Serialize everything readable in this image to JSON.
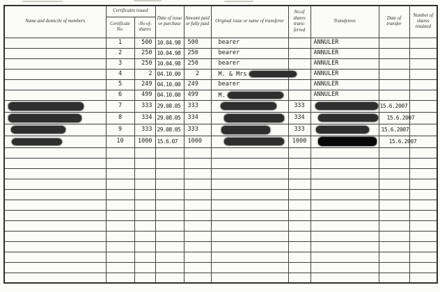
{
  "document": {
    "kind": "scanned share register page"
  },
  "colors": {
    "paper": "#fbfbf8",
    "ink": "#1b1b1b",
    "line": "#3e3e3e",
    "redaction": "#2e2e2e",
    "redaction_black": "#070707"
  },
  "header": {
    "name": "Name and domicile of members",
    "certificates_issued": "Certificates issued",
    "certificate_no": "Certificate No.",
    "no_of_shares": "-No of- shares",
    "date_of_issue": "Date of issue or purchase",
    "amount_paid": "Amount paid or fully paid",
    "original_issue": "Original issue or name of transferor",
    "shares_transferred": "No.of shares trans- ferred",
    "transferees": "Transferees",
    "date_of_transfer": "Date of transfer",
    "shares_retained": "Number of shares retained"
  },
  "table": {
    "empty_row_count": 13,
    "rows": [
      {
        "cert": "1",
        "shares": "500",
        "issue_date": "10.04.98",
        "amount": "500",
        "original": {
          "text": "bearer"
        },
        "shares_transferred": "",
        "transferee": {
          "text": "ANNULER"
        },
        "transfer_date": "",
        "retained": ""
      },
      {
        "cert": "2",
        "shares": "250",
        "issue_date": "10.04.98",
        "amount": "250",
        "original": {
          "text": "bearer"
        },
        "shares_transferred": "",
        "transferee": {
          "text": "ANNULER"
        },
        "transfer_date": "",
        "retained": ""
      },
      {
        "cert": "3",
        "shares": "250",
        "issue_date": "10.04.98",
        "amount": "250",
        "original": {
          "text": "bearer"
        },
        "shares_transferred": "",
        "transferee": {
          "text": "ANNULER"
        },
        "transfer_date": "",
        "retained": ""
      },
      {
        "cert": "4",
        "shares": "2",
        "issue_date": "04.10.00",
        "amount": "2",
        "amount_center": true,
        "original": {
          "text": "M. & Mrs",
          "redact": {
            "w": 68,
            "h": 9,
            "ml": 4
          }
        },
        "shares_transferred": "",
        "transferee": {
          "text": "ANNULER"
        },
        "transfer_date": "",
        "retained": ""
      },
      {
        "cert": "5",
        "shares": "249",
        "issue_date": "04.10.00",
        "amount": "249",
        "original": {
          "text": "bearer"
        },
        "shares_transferred": "",
        "transferee": {
          "text": "ANNULER"
        },
        "transfer_date": "",
        "retained": ""
      },
      {
        "cert": "6",
        "shares": "499",
        "issue_date": "04.10.00",
        "amount": "499",
        "original": {
          "text": "M.",
          "redact": {
            "w": 80,
            "h": 10,
            "ml": 3
          }
        },
        "shares_transferred": "",
        "transferee": {
          "text": "ANNULER"
        },
        "transfer_date": "",
        "retained": ""
      },
      {
        "tall": true,
        "name_redact": {
          "w": 108,
          "h": 12,
          "ml": 3
        },
        "cert": "7",
        "shares": "333",
        "issue_date": "29.08.05",
        "amount": "333",
        "original": {
          "redact": {
            "w": 80,
            "h": 11,
            "ml": 3
          }
        },
        "shares_transferred": "333",
        "transferee": {
          "redact": {
            "w": 90,
            "h": 11,
            "ml": 2
          }
        },
        "transfer_date": "15.6.2007",
        "transfer_date_pad": 1,
        "retained": ""
      },
      {
        "tall": true,
        "name_redact": {
          "w": 105,
          "h": 12,
          "ml": 3
        },
        "cert": "8",
        "shares": "334",
        "issue_date": "29.08.05",
        "amount": "334",
        "original": {
          "redact": {
            "w": 86,
            "h": 12,
            "ml": 8
          }
        },
        "shares_transferred": "334",
        "transferee": {
          "redact": {
            "w": 86,
            "h": 11,
            "ml": 6
          }
        },
        "transfer_date": "15.6.2007",
        "transfer_date_pad": 11,
        "retained": ""
      },
      {
        "tall": true,
        "name_redact": {
          "w": 78,
          "h": 11,
          "ml": 7
        },
        "cert": "9",
        "shares": "333",
        "issue_date": "29.08.05",
        "amount": "333",
        "original": {
          "redact": {
            "w": 70,
            "h": 12,
            "ml": 4
          }
        },
        "shares_transferred": "333",
        "transferee": {
          "redact": {
            "w": 76,
            "h": 11,
            "ml": 3
          }
        },
        "transfer_date": "15.6.2007",
        "transfer_date_pad": 3,
        "retained": ""
      },
      {
        "tall": true,
        "name_redact": {
          "w": 72,
          "h": 10,
          "ml": 8
        },
        "cert": "10",
        "shares": "1000",
        "issue_date": "15.6.07",
        "amount": "1000",
        "original": {
          "redact": {
            "w": 86,
            "h": 11,
            "ml": 8
          }
        },
        "shares_transferred": "1000",
        "transferee": {
          "redact": {
            "w": 84,
            "h": 13,
            "ml": 6,
            "black": true
          }
        },
        "transfer_date": "15.6.2007",
        "transfer_date_pad": 14,
        "retained": ""
      }
    ]
  }
}
